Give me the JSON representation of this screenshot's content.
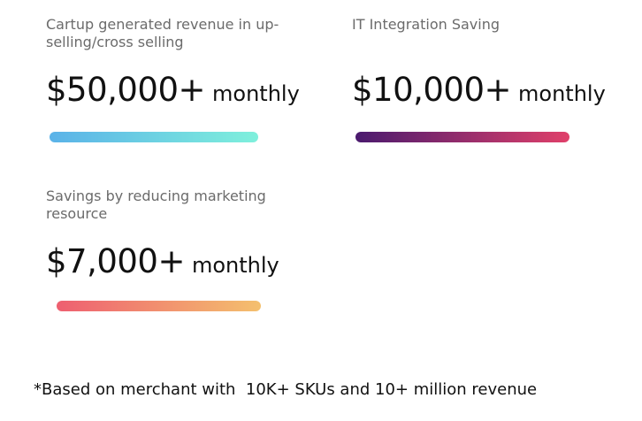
{
  "metrics": [
    {
      "label": "Cartup generated revenue in up-selling/cross selling",
      "amount": "$50,000+",
      "unit": "monthly",
      "bar_gradient": [
        "#5ab2e8",
        "#7ff0dc"
      ]
    },
    {
      "label": "IT Integration Saving",
      "amount": "$10,000+",
      "unit": "monthly",
      "bar_gradient": [
        "#4a1a6e",
        "#e0406a"
      ]
    },
    {
      "label": "Savings by reducing marketing resource",
      "amount": "$7,000+",
      "unit": "monthly",
      "bar_gradient": [
        "#ee5f70",
        "#f4c06e"
      ]
    }
  ],
  "footnote": "*Based on merchant with  10K+ SKUs and 10+ million revenue"
}
